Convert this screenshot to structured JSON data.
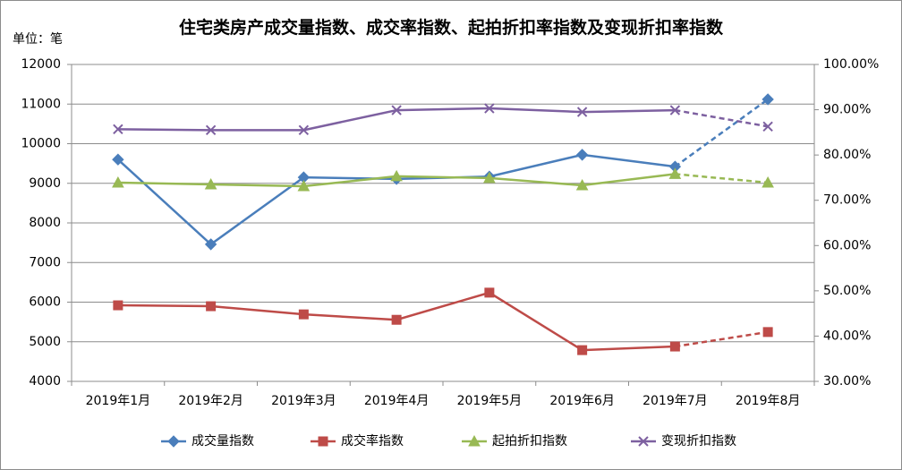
{
  "chart_data": {
    "type": "line",
    "title": "住宅类房产成交量指数、成交率指数、起拍折扣率指数及变现折扣率指数",
    "y_unit_label": "单位：笔",
    "categories": [
      "2019年1月",
      "2019年2月",
      "2019年3月",
      "2019年4月",
      "2019年5月",
      "2019年6月",
      "2019年7月",
      "2019年8月"
    ],
    "ylim": [
      4000,
      12000
    ],
    "yticks": [
      4000,
      5000,
      6000,
      7000,
      8000,
      9000,
      10000,
      11000,
      12000
    ],
    "y2lim": [
      30,
      100
    ],
    "y2ticks": [
      {
        "value": 30,
        "label": "30.00%"
      },
      {
        "value": 40,
        "label": "40.00%"
      },
      {
        "value": 50,
        "label": "50.00%"
      },
      {
        "value": 60,
        "label": "60.00%"
      },
      {
        "value": 70,
        "label": "70.00%"
      },
      {
        "value": 80,
        "label": "80.00%"
      },
      {
        "value": 90,
        "label": "90.00%"
      },
      {
        "value": 100,
        "label": "100.00%"
      }
    ],
    "grid": true,
    "legend": "bottom",
    "series": [
      {
        "name": "成交量指数",
        "color": "#4a7ebb",
        "marker": "diamond",
        "dash_last_segment": true,
        "values": [
          9600,
          7460,
          9150,
          9110,
          9170,
          9720,
          9420,
          11120
        ]
      },
      {
        "name": "成交率指数",
        "color": "#be4b48",
        "marker": "square",
        "axis": "y2",
        "dash_last_segment": true,
        "values": [
          46.8,
          46.6,
          44.8,
          43.6,
          49.6,
          36.9,
          37.7,
          40.9
        ]
      },
      {
        "name": "起拍折扣指数",
        "color": "#98b954",
        "marker": "triangle",
        "axis": "y2",
        "dash_last_segment": true,
        "values": [
          73.9,
          73.5,
          73.1,
          75.3,
          74.9,
          73.3,
          75.8,
          73.9
        ]
      },
      {
        "name": "变现折扣指数",
        "color": "#7d60a0",
        "marker": "x",
        "axis": "y2",
        "dash_last_segment": true,
        "values": [
          85.7,
          85.5,
          85.5,
          89.9,
          90.3,
          89.5,
          89.9,
          86.3
        ]
      }
    ]
  }
}
